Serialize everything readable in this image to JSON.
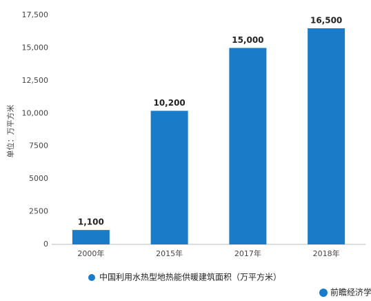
{
  "chart_data": {
    "type": "bar",
    "y_label": "单位：万平方米",
    "categories": [
      "2000年",
      "2015年",
      "2017年",
      "2018年"
    ],
    "series": [
      {
        "name": "中国利用水热型地热能供暖建筑面积（万平方米）",
        "color": "#1a7cc8",
        "values": [
          1100,
          10200,
          15000,
          16500
        ],
        "value_labels": [
          "1,100",
          "10,200",
          "15,000",
          "16,500"
        ]
      }
    ],
    "ylim": [
      0,
      17500
    ],
    "yticks": [
      0,
      2500,
      5000,
      7500,
      {
        "value": 10000,
        "label": "10,000"
      },
      {
        "value": 12500,
        "label": "12,500"
      },
      {
        "value": 15000,
        "label": "15,000"
      },
      {
        "value": 17500,
        "label": "17,500"
      }
    ],
    "grid": false,
    "legend": "bottom",
    "footer": "前瞻经济学人APP"
  }
}
